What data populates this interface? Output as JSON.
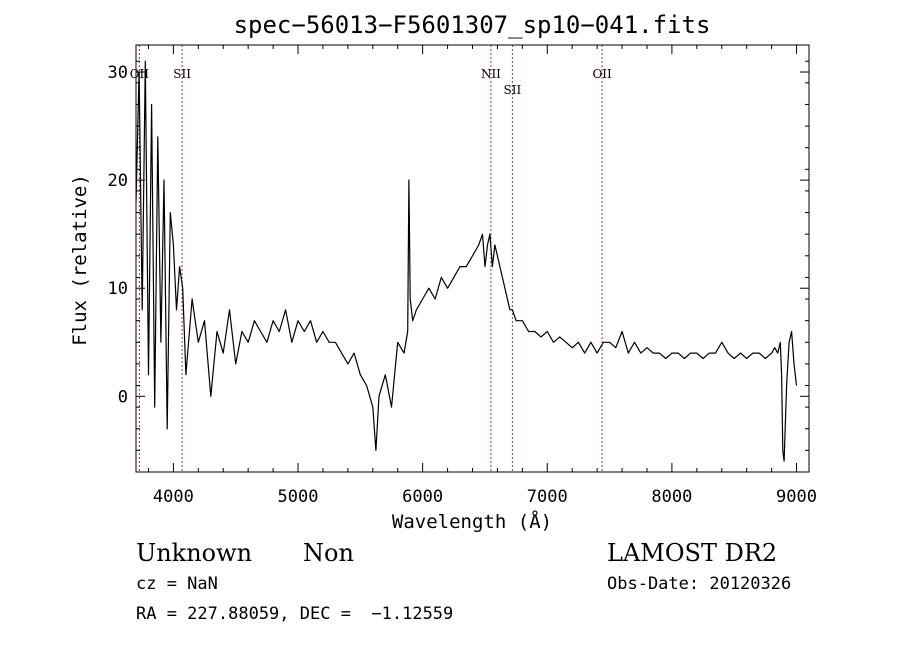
{
  "chart_data": {
    "type": "line",
    "title": "spec−56013−F5601307_sp10−041.fits",
    "xlabel": "Wavelength (Å)",
    "ylabel": "Flux (relative)",
    "xlim": [
      3700,
      9100
    ],
    "ylim": [
      -7,
      32.5
    ],
    "xticks": [
      4000,
      5000,
      6000,
      7000,
      8000,
      9000
    ],
    "yticks": [
      0,
      10,
      20,
      30
    ],
    "grid": false,
    "line_color": "#000000",
    "marker_color": "#b03030",
    "markers": [
      {
        "label": "OII",
        "x": 3727
      },
      {
        "label": "SII",
        "x": 4070
      },
      {
        "label": "NII",
        "x": 6548
      },
      {
        "label": "SII",
        "x": 6720
      },
      {
        "label": "OII",
        "x": 7440
      }
    ],
    "series": [
      {
        "x": [
          3700,
          3725,
          3750,
          3775,
          3800,
          3825,
          3850,
          3875,
          3900,
          3925,
          3950,
          3975,
          4000,
          4025,
          4050,
          4075,
          4100,
          4150,
          4200,
          4250,
          4300,
          4350,
          4400,
          4450,
          4500,
          4550,
          4600,
          4650,
          4700,
          4750,
          4800,
          4850,
          4900,
          4950,
          5000,
          5050,
          5100,
          5150,
          5200,
          5250,
          5300,
          5350,
          5400,
          5450,
          5500,
          5550,
          5600,
          5625,
          5650,
          5700,
          5750,
          5800,
          5850,
          5880,
          5890,
          5900,
          5920,
          5950,
          6000,
          6050,
          6100,
          6150,
          6200,
          6250,
          6300,
          6350,
          6400,
          6450,
          6480,
          6500,
          6520,
          6540,
          6560,
          6580,
          6600,
          6620,
          6640,
          6660,
          6680,
          6700,
          6720,
          6750,
          6800,
          6850,
          6900,
          6950,
          7000,
          7050,
          7100,
          7150,
          7200,
          7250,
          7300,
          7350,
          7400,
          7450,
          7500,
          7550,
          7600,
          7650,
          7700,
          7750,
          7800,
          7850,
          7900,
          7950,
          8000,
          8050,
          8100,
          8150,
          8200,
          8250,
          8300,
          8350,
          8400,
          8450,
          8500,
          8550,
          8600,
          8650,
          8700,
          8750,
          8800,
          8825,
          8850,
          8870,
          8880,
          8890,
          8900,
          8920,
          8940,
          8960,
          8980,
          9000
        ],
        "y": [
          18,
          30,
          8,
          31,
          2,
          27,
          -1,
          24,
          5,
          20,
          -3,
          17,
          14,
          8,
          12,
          10,
          2,
          9,
          5,
          7,
          0,
          6,
          4,
          8,
          3,
          6,
          5,
          7,
          6,
          5,
          7,
          6,
          8,
          5,
          7,
          6,
          7,
          5,
          6,
          5,
          5,
          4,
          3,
          4,
          2,
          1,
          -1,
          -5,
          0,
          2,
          -1,
          5,
          4,
          6,
          20,
          9,
          7,
          8,
          9,
          10,
          9,
          11,
          10,
          11,
          12,
          12,
          13,
          14,
          15,
          12,
          14,
          15,
          12,
          14,
          13,
          12,
          11,
          10,
          9,
          8,
          8,
          7,
          7,
          6,
          6,
          5.5,
          6,
          5,
          5.5,
          5,
          4.5,
          5,
          4,
          5,
          4,
          5,
          5,
          4.5,
          6,
          4,
          5,
          4,
          4.5,
          4,
          4,
          3.5,
          4,
          4,
          3.5,
          4,
          4,
          3.5,
          4,
          4,
          5,
          4,
          3.5,
          4,
          3.5,
          4,
          4,
          3.5,
          4,
          4.5,
          4,
          5,
          2,
          -5,
          -6,
          1,
          5,
          6,
          3,
          1
        ]
      }
    ]
  },
  "info": {
    "class_label": "Unknown",
    "subclass_label": "Non",
    "survey_label": "LAMOST DR2",
    "cz_line": "cz = NaN",
    "obs_date_line": "Obs-Date: 20120326",
    "radec_line": "RA = 227.88059, DEC =  −1.12559"
  }
}
